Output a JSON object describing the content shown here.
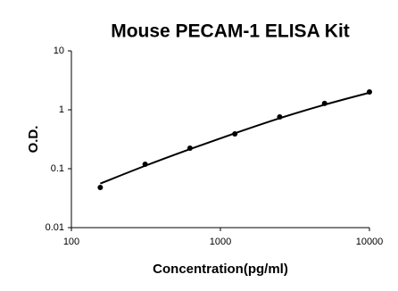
{
  "chart_data": {
    "type": "scatter",
    "title": "Mouse PECAM-1 ELISA Kit",
    "x_label": "Concentration(pg/ml)",
    "y_label": "O.D.",
    "x": [
      156.25,
      312.5,
      625,
      1250,
      2500,
      5000,
      10000
    ],
    "series": [
      {
        "type": "scatter",
        "color": "#000000",
        "values": [
          0.048,
          0.119,
          0.223,
          0.39,
          0.757,
          1.28,
          2.01
        ]
      },
      {
        "type": "line",
        "color": "#000000",
        "values": [
          0.056,
          0.112,
          0.215,
          0.4,
          0.72,
          1.22,
          1.95
        ]
      }
    ],
    "xscale": "log",
    "yscale": "log",
    "xlim": [
      100,
      10000
    ],
    "ylim": [
      0.01,
      10
    ],
    "xticks": [
      100,
      1000,
      10000
    ],
    "yticks": [
      0.01,
      0.1,
      1,
      10
    ]
  }
}
